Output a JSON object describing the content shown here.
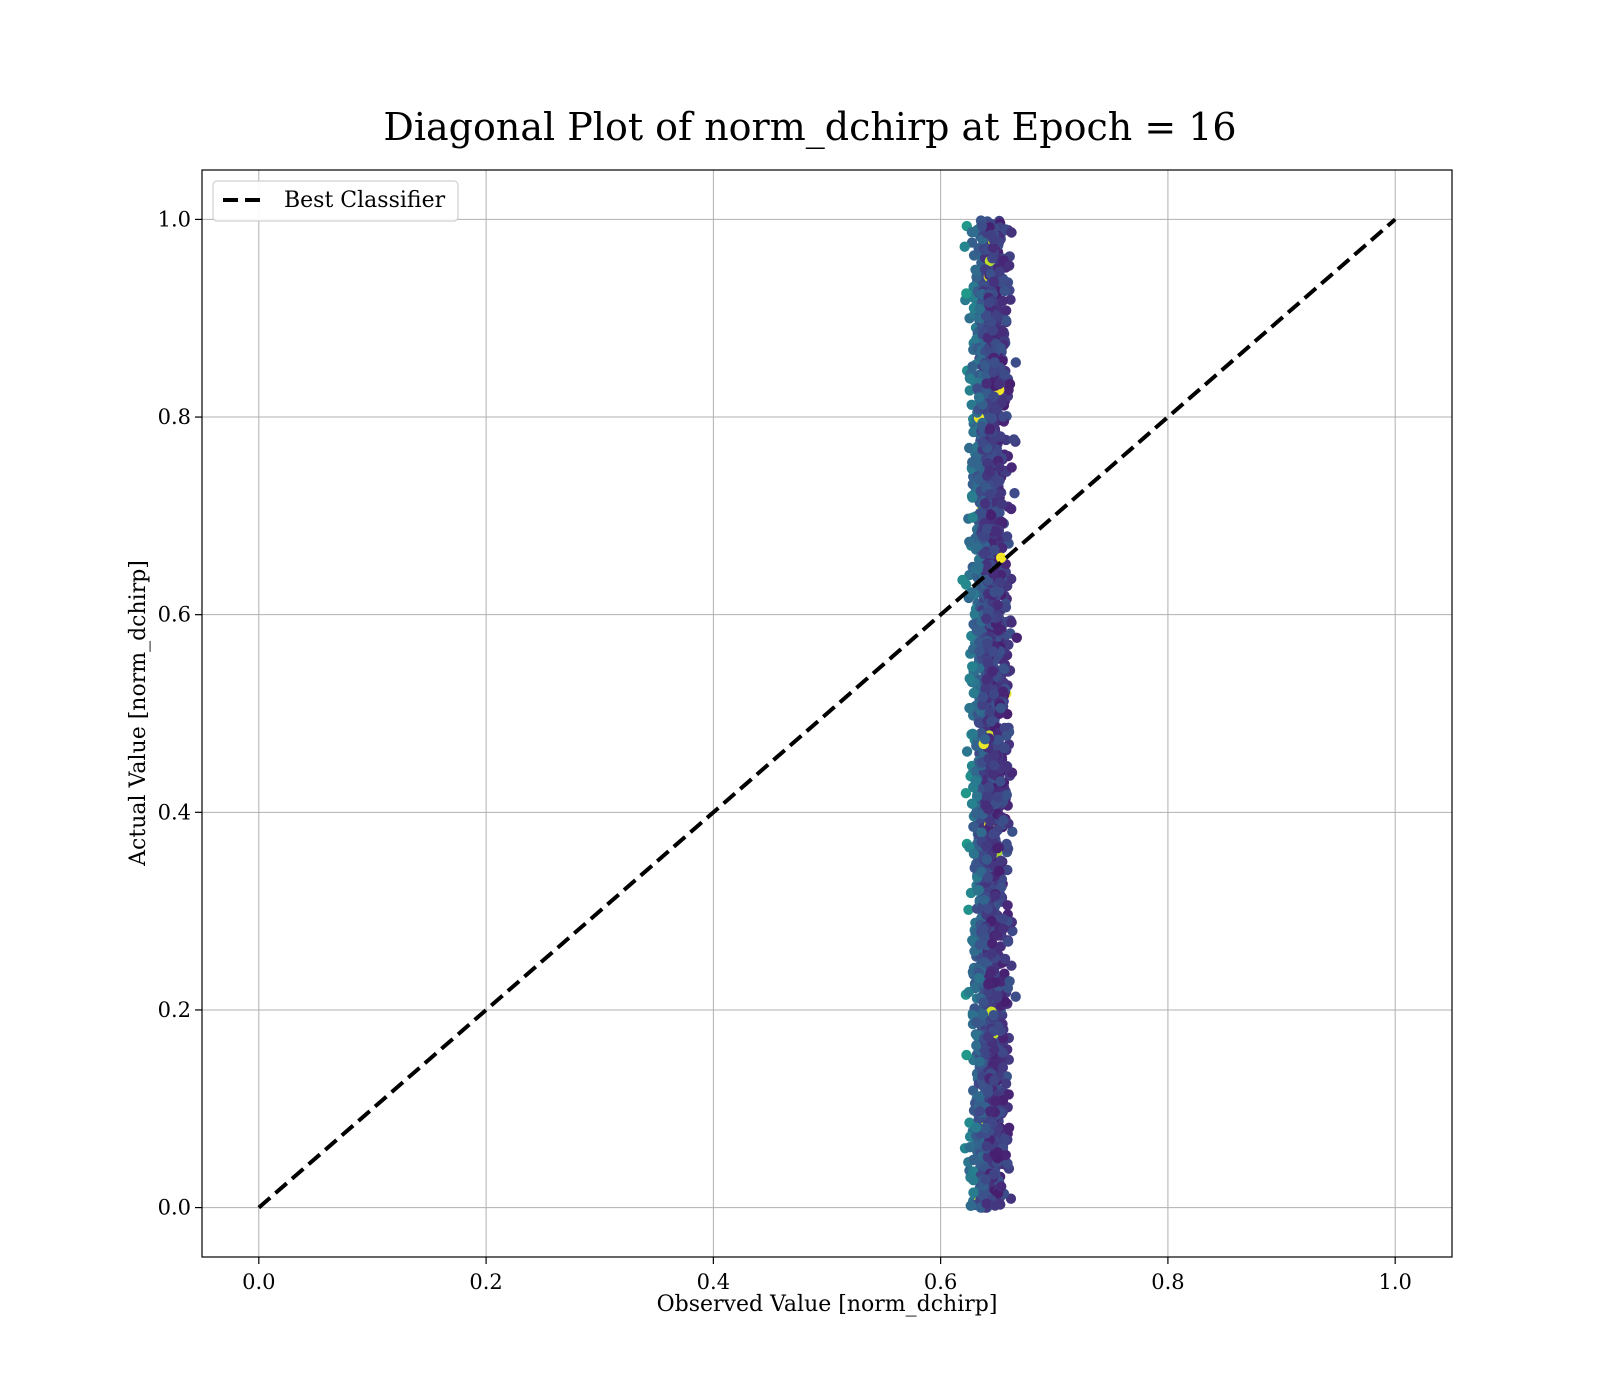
{
  "chart_data": {
    "type": "scatter",
    "title": "Diagonal Plot of norm_dchirp at Epoch = 16",
    "xlabel": "Observed Value [norm_dchirp]",
    "ylabel": "Actual Value [norm_dchirp]",
    "xlim": [
      -0.05,
      1.05
    ],
    "ylim": [
      -0.05,
      1.05
    ],
    "xticks": [
      "0.0",
      "0.2",
      "0.4",
      "0.6",
      "0.8",
      "1.0"
    ],
    "yticks": [
      "0.0",
      "0.2",
      "0.4",
      "0.6",
      "0.8",
      "1.0"
    ],
    "grid": true,
    "legend": {
      "placement": "upper-left",
      "entries": [
        "Best Classifier"
      ]
    },
    "reference_line": {
      "name": "Best Classifier",
      "style": "dashed",
      "color": "#000000",
      "x": [
        0.0,
        1.0
      ],
      "y": [
        0.0,
        1.0
      ]
    },
    "scatter": {
      "colormap": "viridis",
      "x_range": [
        0.605,
        0.67
      ],
      "x_dense_center": 0.643,
      "y_range": [
        0.0,
        1.0
      ],
      "note_sample": "color varies with horizontal offset: left edge green-teal, center dark purple"
    }
  }
}
